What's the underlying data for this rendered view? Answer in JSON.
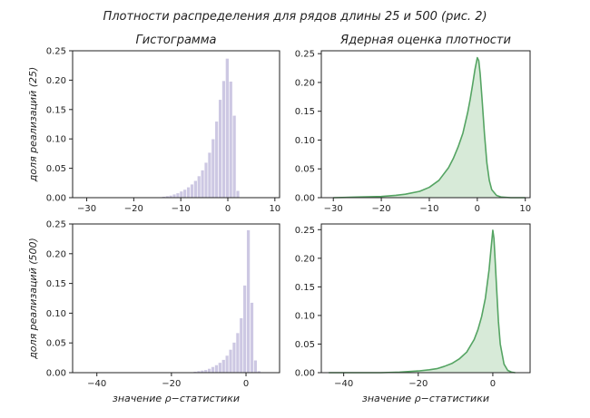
{
  "figure": {
    "suptitle": "Плотности  распределения  для  рядов  длины  25  и  500 (рис. 2)"
  },
  "colors": {
    "hist_fill": "#cdc8e3",
    "hist_edge": "#ffffff",
    "kde_line": "#55a463",
    "kde_fill": "#d7ead8",
    "axis": "#222222"
  },
  "chart_data": [
    {
      "id": "hist25",
      "type": "bar",
      "title": "Гистограмма",
      "ylabel": "доля   реализаций   (25)",
      "xlabel": "",
      "xlim": [
        -33,
        11
      ],
      "ylim": [
        0,
        0.25
      ],
      "xticks": [
        -30,
        -20,
        -10,
        0,
        10
      ],
      "yticks": [
        0.0,
        0.05,
        0.1,
        0.15,
        0.2,
        0.25
      ],
      "bin_width": 0.75,
      "bin_starts": [
        -15.5,
        -14.75,
        -14.0,
        -13.25,
        -12.5,
        -11.75,
        -11.0,
        -10.25,
        -9.5,
        -8.75,
        -8.0,
        -7.25,
        -6.5,
        -5.75,
        -5.0,
        -4.25,
        -3.5,
        -2.75,
        -2.0,
        -1.25,
        -0.5,
        0.25,
        1.0,
        1.75
      ],
      "values": [
        0.001,
        0.001,
        0.002,
        0.003,
        0.004,
        0.006,
        0.008,
        0.011,
        0.014,
        0.018,
        0.023,
        0.029,
        0.037,
        0.047,
        0.06,
        0.077,
        0.1,
        0.13,
        0.167,
        0.199,
        0.237,
        0.198,
        0.14,
        0.012
      ]
    },
    {
      "id": "kde25",
      "type": "area",
      "title": "Ядерная   оценка   плотности",
      "ylabel": "",
      "xlabel": "",
      "xlim": [
        -32.5,
        11
      ],
      "ylim": [
        0,
        0.255
      ],
      "xticks": [
        -30,
        -20,
        -10,
        0,
        10
      ],
      "yticks": [
        0.0,
        0.05,
        0.1,
        0.15,
        0.2,
        0.25
      ],
      "x": [
        -30,
        -25,
        -20,
        -17,
        -15,
        -12,
        -10,
        -8,
        -6,
        -5,
        -4,
        -3,
        -2,
        -1.5,
        -1,
        -0.5,
        0,
        0.3,
        0.6,
        1,
        1.5,
        2,
        2.5,
        3,
        4,
        5,
        7,
        10
      ],
      "y": [
        0.0,
        0.001,
        0.002,
        0.004,
        0.006,
        0.011,
        0.018,
        0.03,
        0.052,
        0.068,
        0.088,
        0.112,
        0.148,
        0.17,
        0.195,
        0.222,
        0.243,
        0.238,
        0.215,
        0.17,
        0.11,
        0.06,
        0.03,
        0.014,
        0.004,
        0.001,
        0.0,
        0.0
      ]
    },
    {
      "id": "hist500",
      "type": "bar",
      "title": "",
      "ylabel": "доля   реализаций   (500)",
      "xlabel": "значение   ρ−статистики",
      "xlim": [
        -46.5,
        9
      ],
      "ylim": [
        0,
        0.25
      ],
      "xticks": [
        -40,
        -20,
        0
      ],
      "yticks": [
        0.0,
        0.05,
        0.1,
        0.15,
        0.2,
        0.25
      ],
      "bin_width": 0.95,
      "bin_starts": [
        -16.0,
        -15.05,
        -14.1,
        -13.15,
        -12.2,
        -11.25,
        -10.3,
        -9.35,
        -8.4,
        -7.45,
        -6.5,
        -5.55,
        -4.6,
        -3.65,
        -2.7,
        -1.75,
        -0.8,
        0.15,
        1.1,
        2.05,
        3.0
      ],
      "values": [
        0.001,
        0.001,
        0.002,
        0.003,
        0.004,
        0.005,
        0.007,
        0.01,
        0.013,
        0.017,
        0.022,
        0.029,
        0.039,
        0.051,
        0.067,
        0.092,
        0.147,
        0.24,
        0.118,
        0.021,
        0.003
      ]
    },
    {
      "id": "kde500",
      "type": "area",
      "title": "",
      "ylabel": "",
      "xlabel": "значение   ρ−статистики",
      "xlim": [
        -46,
        10
      ],
      "ylim": [
        0,
        0.26
      ],
      "xticks": [
        -40,
        -20,
        0
      ],
      "yticks": [
        0.0,
        0.05,
        0.1,
        0.15,
        0.2,
        0.25
      ],
      "x": [
        -44,
        -40,
        -35,
        -30,
        -25,
        -20,
        -17,
        -15,
        -13,
        -11,
        -9,
        -7,
        -5,
        -4,
        -3,
        -2,
        -1,
        -0.5,
        0,
        0.3,
        0.6,
        1,
        1.5,
        2,
        3,
        4,
        5,
        6
      ],
      "y": [
        0.0,
        0.0,
        0.0,
        0.0,
        0.001,
        0.003,
        0.005,
        0.007,
        0.011,
        0.016,
        0.024,
        0.036,
        0.058,
        0.075,
        0.098,
        0.13,
        0.18,
        0.215,
        0.249,
        0.235,
        0.2,
        0.15,
        0.09,
        0.05,
        0.015,
        0.004,
        0.001,
        0.0
      ]
    }
  ]
}
